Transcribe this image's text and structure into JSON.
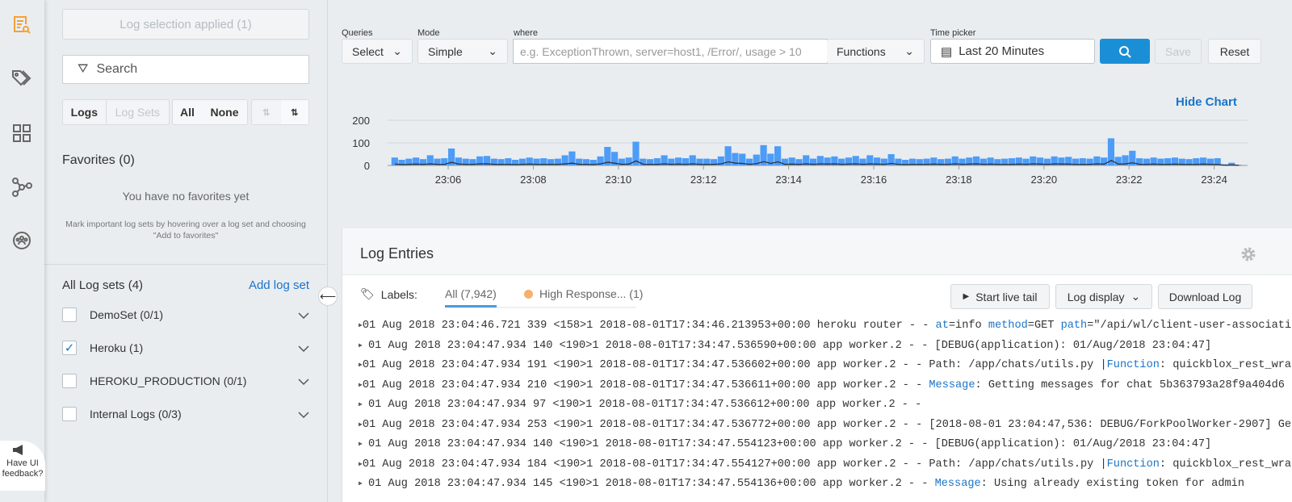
{
  "rail": {
    "items": [
      {
        "icon": "log-search-icon",
        "active": true
      },
      {
        "icon": "tags-icon"
      },
      {
        "icon": "dashboard-icon"
      },
      {
        "icon": "workflow-icon"
      },
      {
        "icon": "team-icon"
      }
    ],
    "feedback": "Have UI feedback?",
    "accent": "#f5a03a"
  },
  "panel": {
    "applied": "Log selection applied (1)",
    "search_placeholder": "Search",
    "seg1": [
      "Logs",
      "Log Sets"
    ],
    "seg2": [
      "All",
      "None"
    ],
    "favorites_title": "Favorites (0)",
    "favorites_empty": "You have no favorites yet",
    "favorites_hint": "Mark important log sets by hovering over a log set and choosing \"Add to favorites\"",
    "sets_title": "All Log sets (4)",
    "add_set": "Add log set",
    "sets": [
      {
        "label": "DemoSet",
        "count": "(0/1)",
        "checked": false
      },
      {
        "label": "Heroku",
        "count": "(1)",
        "checked": true
      },
      {
        "label": "HEROKU_PRODUCTION",
        "count": "(0/1)",
        "checked": false
      },
      {
        "label": "Internal Logs",
        "count": "(0/3)",
        "checked": false
      }
    ]
  },
  "query": {
    "queries_label": "Queries",
    "queries_value": "Select",
    "mode_label": "Mode",
    "mode_value": "Simple",
    "where_label": "where",
    "where_placeholder": "e.g. ExceptionThrown, server=host1, /Error/, usage > 10",
    "functions": "Functions",
    "time_label": "Time picker",
    "time_value": "Last 20 Minutes",
    "save": "Save",
    "reset": "Reset",
    "search_color": "#1a8fd6"
  },
  "hide_chart": "Hide Chart",
  "chart_data": {
    "type": "bar",
    "bin_seconds": 10,
    "x_start": "23:04:40",
    "x_ticks": [
      "23:06",
      "23:08",
      "23:10",
      "23:12",
      "23:14",
      "23:16",
      "23:18",
      "23:20",
      "23:22",
      "23:24"
    ],
    "y_ticks": [
      0,
      100,
      200
    ],
    "ylim": [
      0,
      200
    ],
    "grid": true,
    "bar_color": "#4d9cf8",
    "line_color": "#333333",
    "values": [
      35,
      25,
      30,
      35,
      28,
      45,
      30,
      32,
      75,
      35,
      30,
      28,
      40,
      42,
      30,
      28,
      32,
      25,
      30,
      35,
      30,
      32,
      28,
      30,
      45,
      62,
      30,
      28,
      25,
      40,
      82,
      60,
      30,
      35,
      105,
      30,
      28,
      32,
      45,
      30,
      35,
      32,
      45,
      30,
      30,
      28,
      40,
      85,
      55,
      52,
      30,
      48,
      90,
      52,
      85,
      30,
      35,
      28,
      45,
      30,
      42,
      35,
      40,
      30,
      35,
      42,
      30,
      45,
      35,
      30,
      50,
      30,
      25,
      30,
      28,
      30,
      35,
      28,
      30,
      40,
      30,
      35,
      40,
      30,
      35,
      28,
      30,
      32,
      35,
      30,
      40,
      35,
      30,
      40,
      35,
      38,
      30,
      32,
      30,
      40,
      35,
      120,
      38,
      45,
      65,
      32,
      30,
      35,
      30,
      32,
      35,
      30,
      28,
      32,
      35,
      30,
      32,
      5,
      12,
      3
    ],
    "line_values": [
      6,
      4,
      5,
      6,
      5,
      7,
      5,
      5,
      14,
      6,
      5,
      5,
      7,
      7,
      5,
      5,
      5,
      4,
      5,
      6,
      5,
      5,
      5,
      5,
      7,
      10,
      5,
      5,
      4,
      7,
      14,
      10,
      5,
      6,
      20,
      5,
      5,
      5,
      7,
      5,
      6,
      5,
      7,
      5,
      5,
      5,
      7,
      16,
      10,
      9,
      5,
      8,
      17,
      9,
      16,
      5,
      6,
      5,
      7,
      5,
      7,
      6,
      7,
      5,
      6,
      7,
      5,
      7,
      6,
      5,
      9,
      5,
      4,
      5,
      5,
      5,
      6,
      5,
      5,
      7,
      5,
      6,
      7,
      5,
      6,
      5,
      5,
      5,
      6,
      5,
      7,
      6,
      5,
      7,
      6,
      6,
      5,
      5,
      5,
      7,
      6,
      22,
      6,
      7,
      12,
      5,
      5,
      6,
      5,
      5,
      6,
      5,
      5,
      5,
      6,
      5,
      5,
      1,
      2,
      1
    ]
  },
  "logs": {
    "title": "Log Entries",
    "labels": "Labels:",
    "tab_all": "All (7,942)",
    "tab_high": "High Response... (1)",
    "high_color": "#f5b06b",
    "start_tail": "Start live tail",
    "log_display": "Log display",
    "download": "Download Log",
    "rows": [
      {
        "pre": "01 Aug 2018 23:04:46.721 339 <158>1 2018-08-01T17:34:46.213953+00:00 heroku router - - ",
        "parts": [
          [
            "k",
            "at"
          ],
          [
            "t",
            "=info "
          ],
          [
            "k",
            "method"
          ],
          [
            "t",
            "=GET "
          ],
          [
            "k",
            "path"
          ],
          [
            "t",
            "=\"/api/wl/client-user-associati"
          ]
        ]
      },
      {
        "pre": "01 Aug 2018 23:04:47.934 140 <190>1 2018-08-01T17:34:47.536590+00:00 app worker.2 - - [DEBUG(application): 01/Aug/2018 23:04:47]",
        "parts": []
      },
      {
        "pre": "01 Aug 2018 23:04:47.934 191 <190>1 2018-08-01T17:34:47.536602+00:00 app worker.2 - - Path: /app/chats/utils.py |",
        "parts": [
          [
            "k",
            "Function"
          ],
          [
            "t",
            ": quickblox_rest_wra"
          ]
        ]
      },
      {
        "pre": "01 Aug 2018 23:04:47.934 210 <190>1 2018-08-01T17:34:47.536611+00:00 app worker.2 - - ",
        "parts": [
          [
            "k",
            "Message"
          ],
          [
            "t",
            ": Getting messages for chat 5b363793a28f9a404d6"
          ]
        ]
      },
      {
        "pre": "01 Aug 2018 23:04:47.934 97 <190>1 2018-08-01T17:34:47.536612+00:00 app worker.2 - -",
        "parts": []
      },
      {
        "pre": "01 Aug 2018 23:04:47.934 253 <190>1 2018-08-01T17:34:47.536772+00:00 app worker.2 - - [2018-08-01 23:04:47,536: DEBUG/ForkPoolWorker-2907] Ge",
        "parts": []
      },
      {
        "pre": "01 Aug 2018 23:04:47.934 140 <190>1 2018-08-01T17:34:47.554123+00:00 app worker.2 - - [DEBUG(application): 01/Aug/2018 23:04:47]",
        "parts": []
      },
      {
        "pre": "01 Aug 2018 23:04:47.934 184 <190>1 2018-08-01T17:34:47.554127+00:00 app worker.2 - - Path: /app/chats/utils.py |",
        "parts": [
          [
            "k",
            "Function"
          ],
          [
            "t",
            ": quickblox_rest_wra"
          ]
        ]
      },
      {
        "pre": "01 Aug 2018 23:04:47.934 145 <190>1 2018-08-01T17:34:47.554136+00:00 app worker.2 - - ",
        "parts": [
          [
            "k",
            "Message"
          ],
          [
            "t",
            ": Using already existing token for admin"
          ]
        ]
      }
    ]
  }
}
